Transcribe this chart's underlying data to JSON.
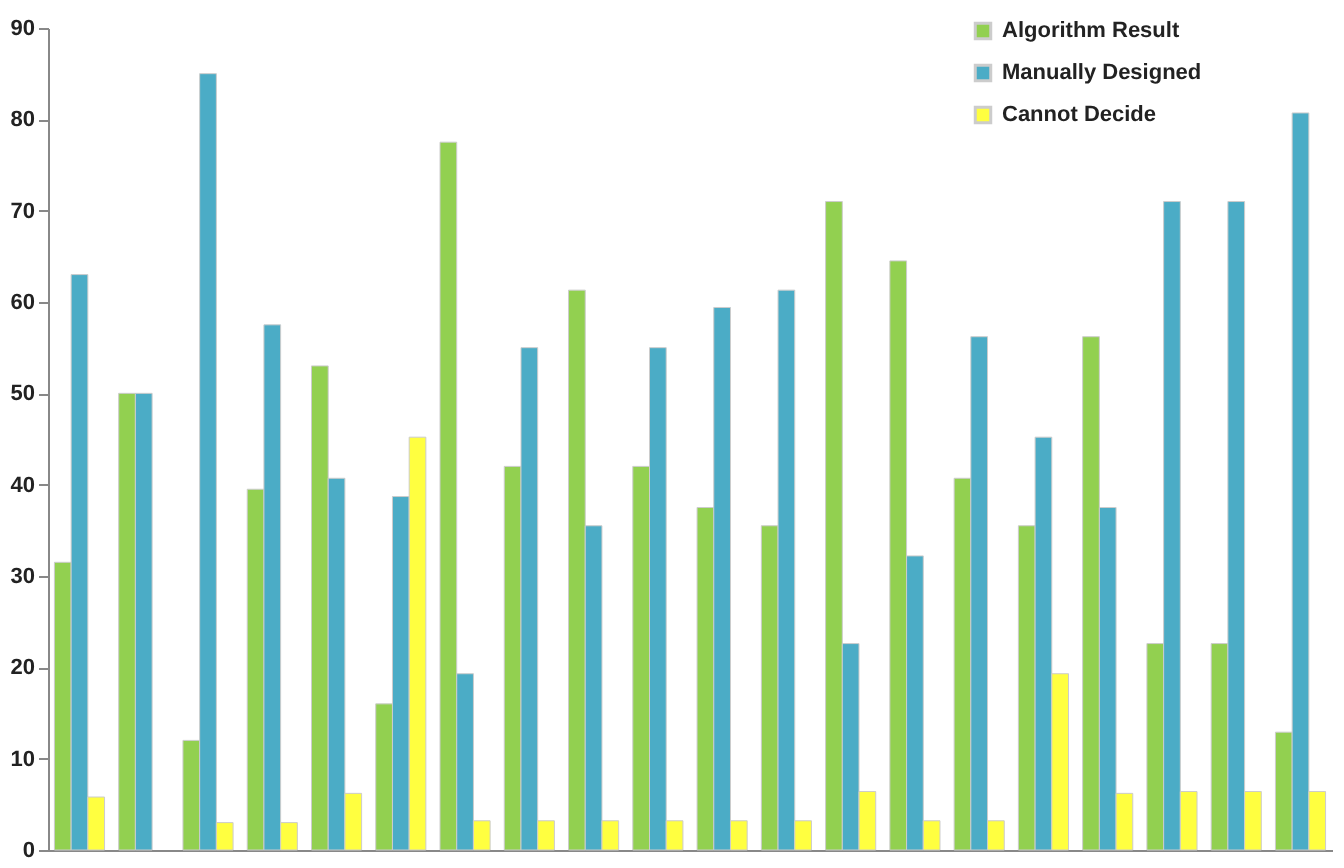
{
  "chart_data": {
    "type": "bar",
    "categories": [
      null,
      null,
      null,
      null,
      null,
      null,
      null,
      null,
      null,
      null,
      null,
      null,
      null,
      null,
      null,
      null,
      null,
      null,
      null,
      null
    ],
    "series": [
      {
        "name": "Algorithm Result",
        "color": "#92d050",
        "values": [
          31.5,
          50,
          12,
          39.5,
          53,
          16,
          77.5,
          42,
          61.3,
          42,
          37.5,
          35.5,
          71,
          64.5,
          40.7,
          35.5,
          56.2,
          22.6,
          22.6,
          12.9
        ]
      },
      {
        "name": "Manually Designed",
        "color": "#4bacc6",
        "values": [
          63,
          50,
          85,
          57.5,
          40.7,
          38.7,
          19.3,
          55,
          35.5,
          55,
          59.4,
          61.3,
          22.6,
          32.2,
          56.2,
          45.2,
          37.5,
          71,
          71,
          80.7
        ]
      },
      {
        "name": "Cannot Decide",
        "color": "#ffff40",
        "values": [
          5.8,
          null,
          3,
          3,
          6.2,
          45.2,
          3.2,
          3.2,
          3.2,
          3.2,
          3.2,
          3.2,
          6.4,
          3.2,
          3.2,
          19.3,
          6.2,
          6.4,
          6.4,
          6.4
        ]
      }
    ],
    "ylim": [
      0,
      90
    ],
    "yticks": [
      0,
      10,
      20,
      30,
      40,
      50,
      60,
      70,
      80,
      90
    ],
    "grid": false,
    "legend": "top right"
  }
}
